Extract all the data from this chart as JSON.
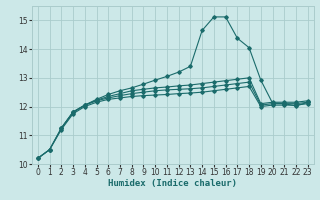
{
  "xlabel": "Humidex (Indice chaleur)",
  "bg_color": "#cce8e8",
  "grid_color": "#aacccc",
  "line_color": "#1a6b6b",
  "xmin": -0.5,
  "xmax": 23.5,
  "ymin": 10,
  "ymax": 15.5,
  "yticks": [
    10,
    11,
    12,
    13,
    14,
    15
  ],
  "xticks": [
    0,
    1,
    2,
    3,
    4,
    5,
    6,
    7,
    8,
    9,
    10,
    11,
    12,
    13,
    14,
    15,
    16,
    17,
    18,
    19,
    20,
    21,
    22,
    23
  ],
  "line1_x": [
    0,
    1,
    2,
    3,
    4,
    5,
    6,
    7,
    8,
    9,
    10,
    11,
    12,
    13,
    14,
    15,
    16,
    17,
    18,
    19,
    20,
    21,
    22,
    23
  ],
  "line1_y": [
    10.2,
    10.5,
    11.2,
    11.75,
    12.0,
    12.15,
    12.25,
    12.3,
    12.35,
    12.38,
    12.4,
    12.42,
    12.45,
    12.47,
    12.5,
    12.55,
    12.6,
    12.65,
    12.7,
    12.0,
    12.05,
    12.05,
    12.05,
    12.1
  ],
  "line2_x": [
    0,
    1,
    2,
    3,
    4,
    5,
    6,
    7,
    8,
    9,
    10,
    11,
    12,
    13,
    14,
    15,
    16,
    17,
    18,
    19,
    20,
    21,
    22,
    23
  ],
  "line2_y": [
    10.2,
    10.5,
    11.25,
    11.8,
    12.05,
    12.2,
    12.3,
    12.38,
    12.45,
    12.5,
    12.55,
    12.58,
    12.6,
    12.62,
    12.65,
    12.7,
    12.75,
    12.8,
    12.85,
    12.05,
    12.1,
    12.1,
    12.1,
    12.15
  ],
  "line3_x": [
    0,
    1,
    2,
    3,
    4,
    5,
    6,
    7,
    8,
    9,
    10,
    11,
    12,
    13,
    14,
    15,
    16,
    17,
    18,
    19,
    20,
    21,
    22,
    23
  ],
  "line3_y": [
    10.2,
    10.5,
    11.25,
    11.82,
    12.05,
    12.22,
    12.35,
    12.45,
    12.55,
    12.6,
    12.65,
    12.68,
    12.72,
    12.75,
    12.8,
    12.85,
    12.9,
    12.95,
    13.0,
    12.1,
    12.15,
    12.15,
    12.15,
    12.2
  ],
  "line4_x": [
    2,
    3,
    4,
    5,
    6,
    7,
    8,
    9,
    10,
    11,
    12,
    13,
    14,
    15,
    16,
    17,
    18,
    19,
    20,
    21,
    22,
    23
  ],
  "line4_y": [
    11.25,
    11.8,
    12.05,
    12.25,
    12.42,
    12.55,
    12.65,
    12.78,
    12.92,
    13.05,
    13.2,
    13.4,
    14.65,
    15.12,
    15.12,
    14.38,
    14.05,
    12.92,
    12.12,
    12.1,
    12.02,
    12.15
  ]
}
